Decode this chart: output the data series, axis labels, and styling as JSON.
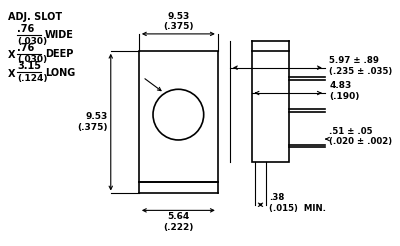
{
  "background_color": "#ffffff",
  "line_color": "#000000",
  "figsize": [
    4.0,
    2.46
  ],
  "dpi": 100,
  "adj_slot_text": "ADJ. SLOT",
  "wide_text": "WIDE",
  "deep_text": "DEEP",
  "long_text": "LONG",
  "dim_953_top": "9.53\n(.375)",
  "dim_564": "5.64\n(.222)",
  "dim_953_left": "9.53\n(.375)",
  "dim_597": "5.97 ± .89\n(.235 ± .035)",
  "dim_483": "4.83\n(.190)",
  "dim_051": ".51 ± .05\n(.020 ± .002)",
  "dim_038": ".38\n(.015)",
  "min_text": "MIN."
}
